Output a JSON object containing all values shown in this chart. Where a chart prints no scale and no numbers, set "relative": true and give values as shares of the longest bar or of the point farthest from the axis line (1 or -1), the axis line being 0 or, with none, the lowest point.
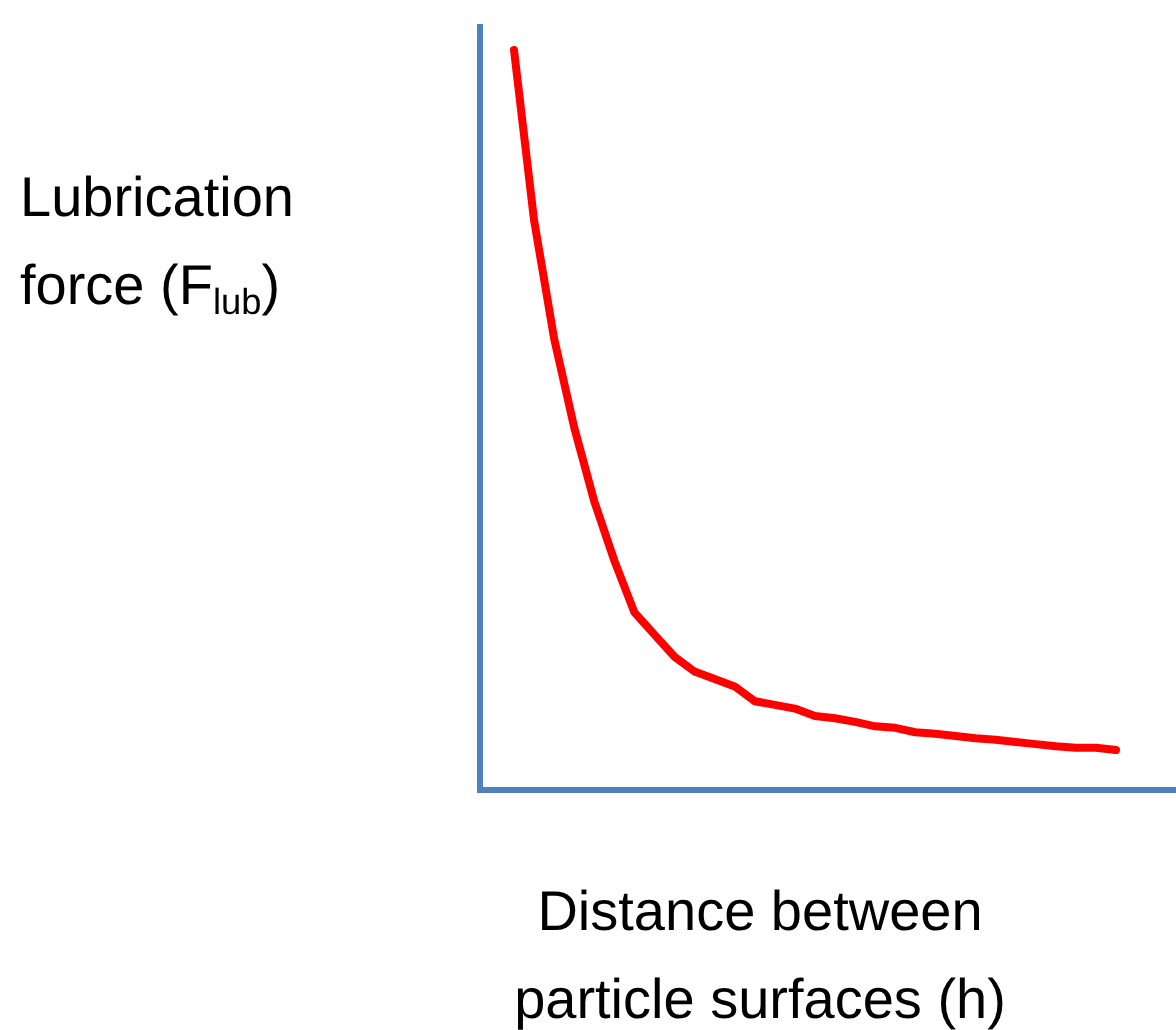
{
  "chart_data": {
    "type": "line",
    "relative": true,
    "xlabel": "Distance between particle surfaces (h)",
    "ylabel": "Lubrication force (F$_{lub}$)",
    "categories": [
      null,
      null,
      null,
      null,
      null,
      null,
      null,
      null,
      null,
      null,
      null,
      null,
      null,
      null,
      null,
      null,
      null,
      null,
      null,
      null,
      null,
      null,
      null,
      null,
      null,
      null,
      null,
      null,
      null,
      null,
      null
    ],
    "series": [
      {
        "color": "#ff0000",
        "values": [
          1,
          0.77,
          0.61,
          0.49,
          0.39,
          0.31,
          0.24,
          0.21,
          0.18,
          0.16,
          0.15,
          0.14,
          0.12,
          0.115,
          0.11,
          0.1,
          0.097,
          0.092,
          0.086,
          0.084,
          0.078,
          0.076,
          0.073,
          0.07,
          0.068,
          0.065,
          0.062,
          0.059,
          0.057,
          0.057,
          0.054
        ]
      }
    ]
  }
}
